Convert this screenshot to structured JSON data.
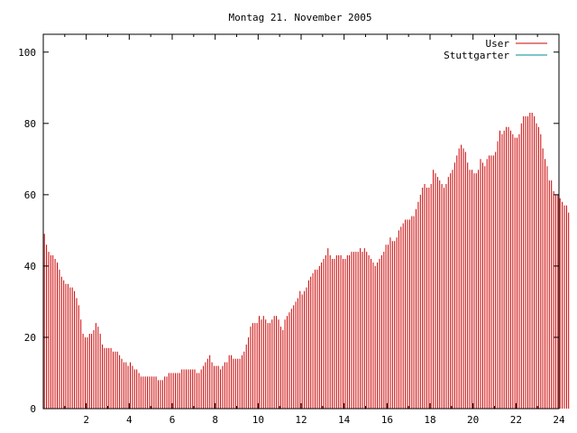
{
  "chart_data": {
    "type": "bar",
    "title": "Montag 21. November 2005",
    "xlabel": "",
    "ylabel": "",
    "xlim": [
      0,
      24
    ],
    "ylim": [
      0,
      105
    ],
    "x_ticks": [
      "2",
      "4",
      "6",
      "8",
      "10",
      "12",
      "14",
      "16",
      "18",
      "20",
      "22",
      "24"
    ],
    "y_ticks": [
      "0",
      "20",
      "40",
      "60",
      "80",
      "100"
    ],
    "legend_position": "top-right",
    "grid": false,
    "series": [
      {
        "name": "User",
        "color": "#cc0000",
        "x_step": 0.1,
        "values": [
          49,
          46,
          44,
          43,
          43,
          42,
          41,
          39,
          37,
          36,
          35,
          35,
          34,
          34,
          33,
          31,
          29,
          25,
          21,
          20,
          20,
          21,
          21,
          22,
          24,
          23,
          21,
          18,
          17,
          17,
          17,
          17,
          16,
          16,
          16,
          15,
          14,
          13,
          13,
          12,
          13,
          12,
          11,
          11,
          10,
          9,
          9,
          9,
          9,
          9,
          9,
          9,
          9,
          8,
          8,
          8,
          9,
          9,
          10,
          10,
          10,
          10,
          10,
          10,
          11,
          11,
          11,
          11,
          11,
          11,
          11,
          10,
          10,
          11,
          12,
          13,
          14,
          15,
          13,
          12,
          12,
          12,
          11,
          12,
          13,
          13,
          15,
          15,
          14,
          14,
          14,
          14,
          15,
          16,
          18,
          20,
          23,
          24,
          24,
          24,
          26,
          25,
          26,
          25,
          24,
          24,
          25,
          26,
          26,
          25,
          23,
          22,
          25,
          26,
          27,
          28,
          29,
          30,
          31,
          33,
          32,
          33,
          34,
          36,
          37,
          38,
          39,
          39,
          40,
          41,
          42,
          43,
          45,
          43,
          42,
          42,
          43,
          43,
          43,
          42,
          42,
          43,
          43,
          44,
          44,
          44,
          44,
          45,
          44,
          45,
          44,
          43,
          42,
          41,
          40,
          41,
          42,
          43,
          44,
          46,
          46,
          48,
          47,
          47,
          48,
          50,
          51,
          52,
          53,
          53,
          53,
          54,
          54,
          56,
          58,
          60,
          62,
          63,
          62,
          62,
          63,
          67,
          66,
          65,
          64,
          63,
          62,
          63,
          65,
          66,
          67,
          69,
          71,
          73,
          74,
          73,
          72,
          69,
          67,
          67,
          66,
          66,
          67,
          70,
          69,
          68,
          70,
          71,
          71,
          71,
          72,
          75,
          78,
          77,
          78,
          79,
          79,
          78,
          77,
          76,
          76,
          77,
          80,
          82,
          82,
          82,
          83,
          83,
          82,
          80,
          79,
          77,
          73,
          70,
          68,
          64,
          64,
          61,
          60,
          60,
          59,
          58,
          57,
          57,
          55
        ]
      },
      {
        "name": "Stuttgarter",
        "color": "#008b8b",
        "values": []
      }
    ]
  }
}
